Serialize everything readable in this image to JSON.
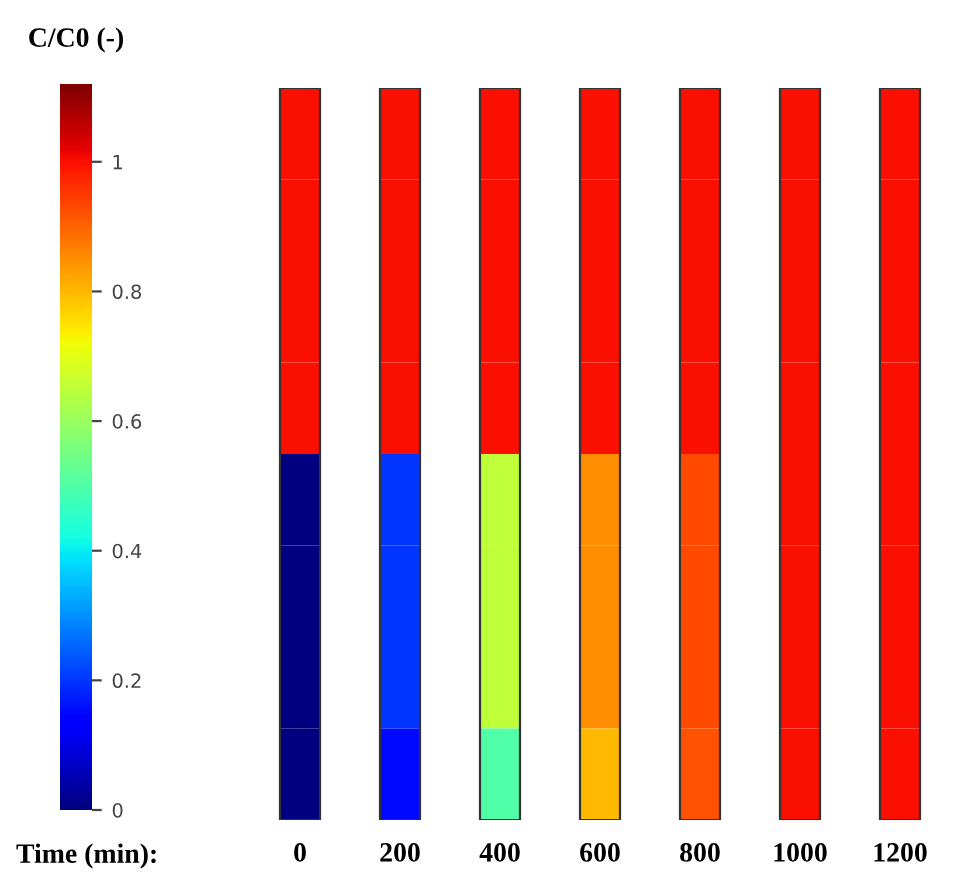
{
  "chart_data": {
    "type": "heatmap",
    "categories": [
      "0",
      "200",
      "400",
      "600",
      "800",
      "1000",
      "1200"
    ],
    "y_categories": [
      null,
      null,
      null,
      null,
      null,
      null,
      null,
      null
    ],
    "cells": [
      [
        1.0,
        1.0,
        1.0,
        1.0,
        1.0,
        1.0,
        1.0
      ],
      [
        1.0,
        1.0,
        1.0,
        1.0,
        1.0,
        1.0,
        1.0
      ],
      [
        1.0,
        1.0,
        1.0,
        1.0,
        1.0,
        1.0,
        1.0
      ],
      [
        1.0,
        1.0,
        1.0,
        1.0,
        1.0,
        1.0,
        1.0
      ],
      [
        0.0,
        0.2,
        0.65,
        0.85,
        0.93,
        1.0,
        1.0
      ],
      [
        0.0,
        0.2,
        0.65,
        0.85,
        0.93,
        1.0,
        1.0
      ],
      [
        0.0,
        0.2,
        0.65,
        0.85,
        0.93,
        1.0,
        1.0
      ],
      [
        0.0,
        0.15,
        0.5,
        0.8,
        0.92,
        1.0,
        1.0
      ]
    ],
    "xlabel": "Time (min):",
    "clabel": "C/C0 (-)",
    "clim": [
      0,
      1.12
    ],
    "cticks": [
      0,
      0.2,
      0.4,
      0.6,
      0.8,
      1
    ]
  }
}
